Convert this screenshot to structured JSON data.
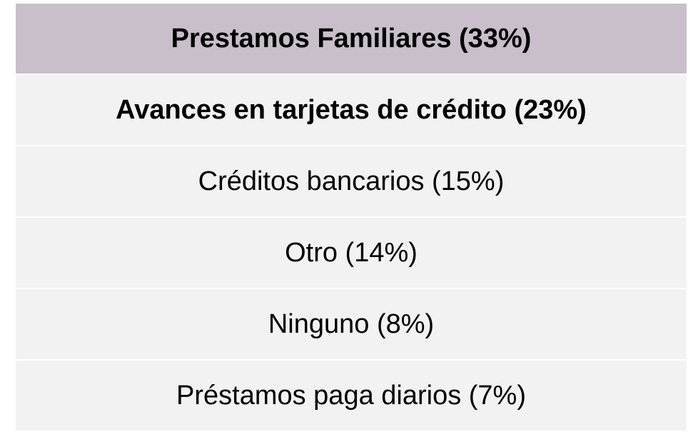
{
  "table": {
    "header": "Prestamos Familiares (33%)",
    "rows": [
      "Avances en tarjetas de crédito (23%)",
      "Créditos bancarios (15%)",
      "Otro (14%)",
      "Ninguno (8%)",
      "Préstamos paga diarios (7%)"
    ]
  }
}
